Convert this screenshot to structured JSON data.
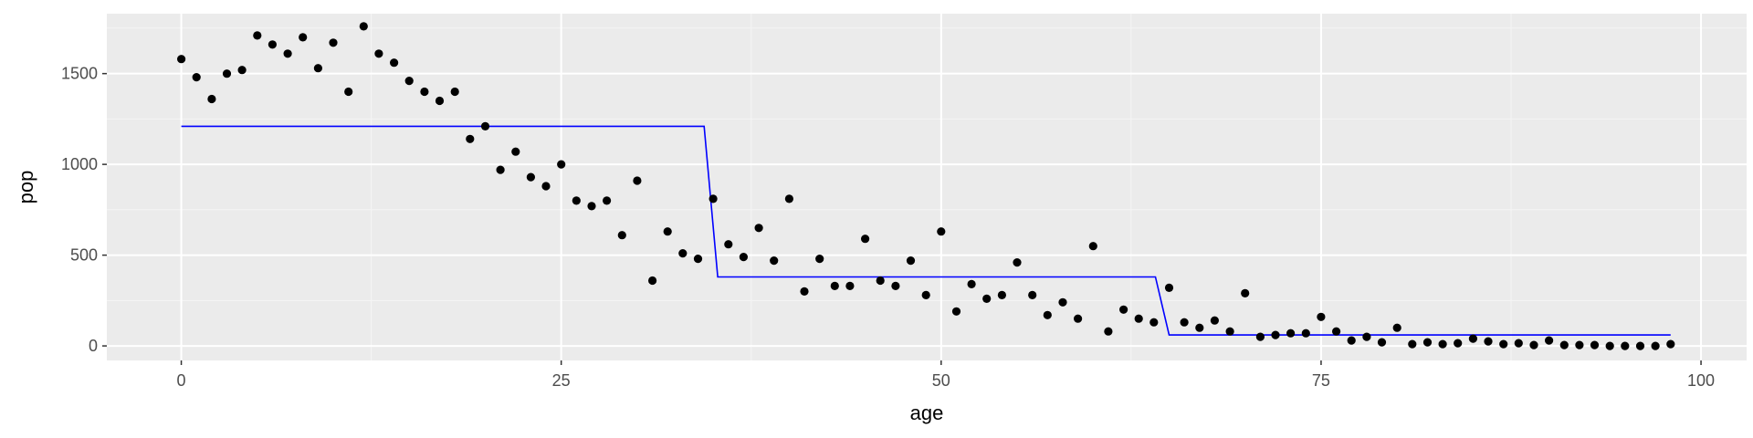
{
  "chart_data": {
    "type": "scatter",
    "xlabel": "age",
    "ylabel": "pop",
    "xlim": [
      -4.9,
      103.0
    ],
    "ylim": [
      -80,
      1830
    ],
    "x_ticks": [
      0,
      25,
      50,
      75,
      100
    ],
    "y_ticks": [
      0,
      500,
      1000,
      1500
    ],
    "grid": true,
    "colors": {
      "panel": "#ebebeb",
      "grid_major": "#ffffff",
      "grid_minor": "#f5f5f5",
      "points": "#000000",
      "step_line": "#0000ff"
    },
    "series": [
      {
        "type": "scatter",
        "points": [
          [
            0,
            1580
          ],
          [
            1,
            1480
          ],
          [
            2,
            1360
          ],
          [
            3,
            1500
          ],
          [
            4,
            1520
          ],
          [
            5,
            1710
          ],
          [
            6,
            1660
          ],
          [
            7,
            1610
          ],
          [
            8,
            1700
          ],
          [
            9,
            1530
          ],
          [
            10,
            1670
          ],
          [
            11,
            1400
          ],
          [
            12,
            1760
          ],
          [
            13,
            1610
          ],
          [
            14,
            1560
          ],
          [
            15,
            1460
          ],
          [
            16,
            1400
          ],
          [
            17,
            1350
          ],
          [
            18,
            1400
          ],
          [
            19,
            1140
          ],
          [
            20,
            1210
          ],
          [
            21,
            970
          ],
          [
            22,
            1070
          ],
          [
            23,
            930
          ],
          [
            24,
            880
          ],
          [
            25,
            1000
          ],
          [
            26,
            800
          ],
          [
            27,
            770
          ],
          [
            28,
            800
          ],
          [
            29,
            610
          ],
          [
            30,
            910
          ],
          [
            31,
            360
          ],
          [
            32,
            630
          ],
          [
            33,
            510
          ],
          [
            34,
            480
          ],
          [
            35,
            810
          ],
          [
            36,
            560
          ],
          [
            37,
            490
          ],
          [
            38,
            650
          ],
          [
            39,
            470
          ],
          [
            40,
            810
          ],
          [
            41,
            300
          ],
          [
            42,
            480
          ],
          [
            43,
            330
          ],
          [
            44,
            330
          ],
          [
            45,
            590
          ],
          [
            46,
            360
          ],
          [
            47,
            330
          ],
          [
            48,
            470
          ],
          [
            49,
            280
          ],
          [
            50,
            630
          ],
          [
            51,
            190
          ],
          [
            52,
            340
          ],
          [
            53,
            260
          ],
          [
            54,
            280
          ],
          [
            55,
            460
          ],
          [
            56,
            280
          ],
          [
            57,
            170
          ],
          [
            58,
            240
          ],
          [
            59,
            150
          ],
          [
            60,
            550
          ],
          [
            61,
            80
          ],
          [
            62,
            200
          ],
          [
            63,
            150
          ],
          [
            64,
            130
          ],
          [
            65,
            320
          ],
          [
            66,
            130
          ],
          [
            67,
            100
          ],
          [
            68,
            140
          ],
          [
            69,
            80
          ],
          [
            70,
            290
          ],
          [
            71,
            50
          ],
          [
            72,
            60
          ],
          [
            73,
            70
          ],
          [
            74,
            70
          ],
          [
            75,
            160
          ],
          [
            76,
            80
          ],
          [
            77,
            30
          ],
          [
            78,
            50
          ],
          [
            79,
            20
          ],
          [
            80,
            100
          ],
          [
            81,
            10
          ],
          [
            82,
            20
          ],
          [
            83,
            10
          ],
          [
            84,
            15
          ],
          [
            85,
            40
          ],
          [
            86,
            25
          ],
          [
            87,
            10
          ],
          [
            88,
            15
          ],
          [
            89,
            5
          ],
          [
            90,
            30
          ],
          [
            91,
            5
          ],
          [
            92,
            5
          ],
          [
            93,
            5
          ],
          [
            94,
            0
          ],
          [
            95,
            0
          ],
          [
            96,
            0
          ],
          [
            97,
            0
          ],
          [
            98,
            10
          ]
        ]
      },
      {
        "type": "line",
        "points": [
          [
            0,
            1210
          ],
          [
            34.4,
            1210
          ],
          [
            35.3,
            380
          ],
          [
            64.1,
            380
          ],
          [
            65,
            60
          ],
          [
            98,
            60
          ]
        ]
      }
    ]
  }
}
